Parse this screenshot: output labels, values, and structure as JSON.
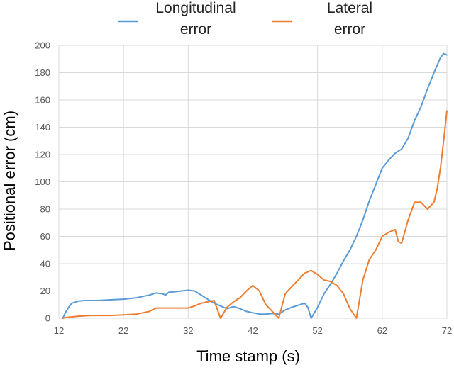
{
  "chart_data": {
    "type": "line",
    "title": "",
    "xlabel": "Time stamp (s)",
    "ylabel": "Positional error (cm)",
    "xlim": [
      12,
      72
    ],
    "ylim": [
      0,
      200
    ],
    "x_ticks": [
      12,
      22,
      32,
      42,
      52,
      62,
      72
    ],
    "y_ticks": [
      0,
      20,
      40,
      60,
      80,
      100,
      120,
      140,
      160,
      180,
      200
    ],
    "grid": true,
    "legend_position": "top",
    "series": [
      {
        "name_lines": [
          "Longitudinal",
          "error"
        ],
        "color": "#5b9bd5",
        "points": [
          [
            12.6,
            0
          ],
          [
            13.0,
            4
          ],
          [
            13.5,
            8
          ],
          [
            14.0,
            11
          ],
          [
            15.0,
            12.5
          ],
          [
            16.0,
            13
          ],
          [
            18.0,
            13
          ],
          [
            20.0,
            13.5
          ],
          [
            22.0,
            14
          ],
          [
            24.0,
            15
          ],
          [
            25.0,
            16
          ],
          [
            26.0,
            17
          ],
          [
            27.0,
            18.5
          ],
          [
            28.0,
            18
          ],
          [
            28.5,
            17
          ],
          [
            29.0,
            19
          ],
          [
            30.0,
            19.5
          ],
          [
            31.0,
            20
          ],
          [
            32.0,
            20.5
          ],
          [
            33.0,
            20
          ],
          [
            34.0,
            17
          ],
          [
            35.0,
            14
          ],
          [
            36.0,
            11
          ],
          [
            37.0,
            9
          ],
          [
            38.0,
            7
          ],
          [
            39.0,
            8.5
          ],
          [
            40.0,
            7
          ],
          [
            41.0,
            5
          ],
          [
            42.0,
            4
          ],
          [
            43.0,
            3
          ],
          [
            44.0,
            3
          ],
          [
            45.0,
            3.5
          ],
          [
            46.0,
            3
          ],
          [
            47.0,
            6
          ],
          [
            48.0,
            8
          ],
          [
            49.0,
            9.5
          ],
          [
            50.0,
            11
          ],
          [
            50.5,
            8
          ],
          [
            51.0,
            0
          ],
          [
            52.0,
            8
          ],
          [
            53.0,
            18
          ],
          [
            54.0,
            25
          ],
          [
            55.0,
            33
          ],
          [
            56.0,
            42
          ],
          [
            57.0,
            50
          ],
          [
            58.0,
            60
          ],
          [
            59.0,
            72
          ],
          [
            60.0,
            86
          ],
          [
            61.0,
            98
          ],
          [
            62.0,
            110
          ],
          [
            63.0,
            116
          ],
          [
            64.0,
            121
          ],
          [
            65.0,
            124
          ],
          [
            66.0,
            132
          ],
          [
            67.0,
            145
          ],
          [
            68.0,
            155
          ],
          [
            69.0,
            168
          ],
          [
            70.0,
            180
          ],
          [
            71.0,
            191
          ],
          [
            71.5,
            194
          ],
          [
            72.0,
            193
          ]
        ]
      },
      {
        "name_lines": [
          "Lateral",
          "error"
        ],
        "color": "#ed7d31",
        "points": [
          [
            12.6,
            0
          ],
          [
            13.0,
            0.5
          ],
          [
            14.0,
            1
          ],
          [
            15.0,
            1.5
          ],
          [
            17.0,
            2
          ],
          [
            20.0,
            2
          ],
          [
            22.0,
            2.5
          ],
          [
            24.0,
            3
          ],
          [
            25.0,
            4
          ],
          [
            26.0,
            5
          ],
          [
            27.0,
            7.5
          ],
          [
            29.0,
            7.5
          ],
          [
            32.0,
            7.5
          ],
          [
            33.0,
            9
          ],
          [
            34.0,
            11
          ],
          [
            35.0,
            12
          ],
          [
            36.0,
            13
          ],
          [
            37.0,
            0
          ],
          [
            38.0,
            8
          ],
          [
            39.0,
            12
          ],
          [
            40.0,
            15
          ],
          [
            41.0,
            20
          ],
          [
            42.0,
            24
          ],
          [
            43.0,
            20
          ],
          [
            44.0,
            10
          ],
          [
            45.0,
            5
          ],
          [
            46.0,
            0
          ],
          [
            47.0,
            18
          ],
          [
            48.0,
            23
          ],
          [
            49.0,
            28
          ],
          [
            50.0,
            33
          ],
          [
            51.0,
            35
          ],
          [
            52.0,
            32
          ],
          [
            53.0,
            28
          ],
          [
            54.0,
            27
          ],
          [
            55.0,
            24
          ],
          [
            56.0,
            18
          ],
          [
            57.0,
            7
          ],
          [
            58.0,
            0
          ],
          [
            59.0,
            28
          ],
          [
            60.0,
            43
          ],
          [
            61.0,
            50
          ],
          [
            62.0,
            60
          ],
          [
            63.0,
            63
          ],
          [
            64.0,
            65
          ],
          [
            64.5,
            56
          ],
          [
            65.0,
            55
          ],
          [
            66.0,
            72
          ],
          [
            67.0,
            85
          ],
          [
            68.0,
            85
          ],
          [
            69.0,
            80
          ],
          [
            70.0,
            85
          ],
          [
            70.5,
            95
          ],
          [
            71.0,
            110
          ],
          [
            71.5,
            130
          ],
          [
            72.0,
            152
          ]
        ]
      }
    ]
  }
}
